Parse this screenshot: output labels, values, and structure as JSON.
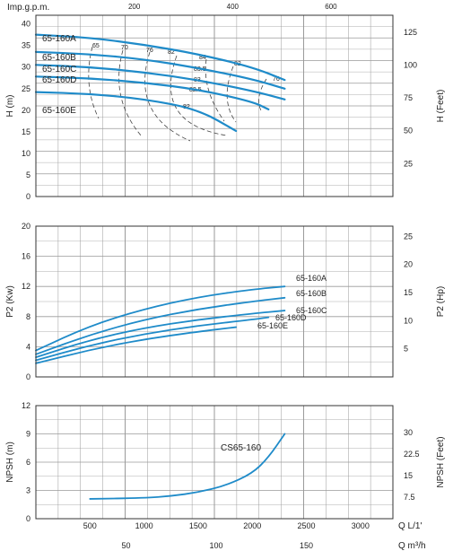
{
  "colors": {
    "curve": "#1f8bc9",
    "grid": "#9a9a9a",
    "frame": "#333333",
    "efficiency": "#444444"
  },
  "top_axis": {
    "title": "Imp.g.p.m.",
    "ticks": [
      "200",
      "400",
      "600"
    ]
  },
  "bottom_axes": {
    "q_lmin": {
      "title": "Q  L/1'",
      "ticks": [
        "500",
        "1000",
        "1500",
        "2000",
        "2500",
        "3000"
      ]
    },
    "q_m3h": {
      "title": "Q  m³/h",
      "ticks": [
        "50",
        "100",
        "150"
      ]
    }
  },
  "chart_data": [
    {
      "type": "line",
      "x_unit": "L/min",
      "xlim": [
        0,
        3300
      ],
      "ylabel": "H (m)",
      "ylabel_right": "H (Feet)",
      "ylim": [
        0,
        42
      ],
      "yticks": [
        "0",
        "5",
        "10",
        "15",
        "20",
        "25",
        "30",
        "35",
        "40"
      ],
      "yticks_right": [
        "25",
        "50",
        "75",
        "100",
        "125"
      ],
      "grid": true,
      "series": [
        {
          "name": "65-160A",
          "x": [
            0,
            500,
            1000,
            1500,
            2000,
            2300
          ],
          "y": [
            37.5,
            36.8,
            35.2,
            33.0,
            30.0,
            27.0
          ]
        },
        {
          "name": "65-160B",
          "x": [
            0,
            500,
            1000,
            1500,
            2000,
            2300
          ],
          "y": [
            33.5,
            33.0,
            31.8,
            29.8,
            27.2,
            25.0
          ]
        },
        {
          "name": "65-160C",
          "x": [
            0,
            500,
            1000,
            1500,
            2000,
            2300
          ],
          "y": [
            30.5,
            30.0,
            28.8,
            27.0,
            24.5,
            22.5
          ]
        },
        {
          "name": "65-160D",
          "x": [
            0,
            500,
            1000,
            1500,
            2000,
            2150
          ],
          "y": [
            27.8,
            27.4,
            26.4,
            24.8,
            22.0,
            20.2
          ]
        },
        {
          "name": "65-160E",
          "x": [
            0,
            500,
            1000,
            1500,
            1850
          ],
          "y": [
            24.2,
            23.8,
            22.6,
            20.2,
            15.2
          ]
        }
      ],
      "efficiency_labels": [
        "65",
        "70",
        "76",
        "82",
        "84",
        "83.5",
        "83",
        "82.5",
        "82",
        "82",
        "76"
      ]
    },
    {
      "type": "line",
      "x_unit": "L/min",
      "xlim": [
        0,
        3300
      ],
      "ylabel": "P2 (Kw)",
      "ylabel_right": "P2 (Hp)",
      "ylim": [
        0,
        20
      ],
      "yticks": [
        "0",
        "4",
        "8",
        "12",
        "16",
        "20"
      ],
      "yticks_right": [
        "5",
        "10",
        "15",
        "20",
        "25"
      ],
      "grid": true,
      "series": [
        {
          "name": "65-160A",
          "x": [
            0,
            500,
            1000,
            1500,
            2000,
            2300
          ],
          "y": [
            3.5,
            6.8,
            9.0,
            10.6,
            11.6,
            12.0
          ]
        },
        {
          "name": "65-160B",
          "x": [
            0,
            500,
            1000,
            1500,
            2000,
            2300
          ],
          "y": [
            3.0,
            5.6,
            7.6,
            9.0,
            10.0,
            10.5
          ]
        },
        {
          "name": "65-160C",
          "x": [
            0,
            500,
            1000,
            1500,
            2000,
            2300
          ],
          "y": [
            2.6,
            4.9,
            6.5,
            7.6,
            8.4,
            8.8
          ]
        },
        {
          "name": "65-160D",
          "x": [
            0,
            500,
            1000,
            1500,
            2000,
            2150
          ],
          "y": [
            2.2,
            4.2,
            5.7,
            6.8,
            7.6,
            7.9
          ]
        },
        {
          "name": "65-160E",
          "x": [
            0,
            500,
            1000,
            1500,
            1850
          ],
          "y": [
            1.8,
            3.6,
            5.0,
            6.0,
            6.6
          ]
        }
      ]
    },
    {
      "type": "line",
      "x_unit": "L/min",
      "xlim": [
        0,
        3300
      ],
      "ylabel": "NPSH (m)",
      "ylabel_right": "NPSH (Feet)",
      "ylim": [
        0,
        12
      ],
      "yticks": [
        "0",
        "3",
        "6",
        "9",
        "12"
      ],
      "yticks_right": [
        "7.5",
        "15",
        "22.5",
        "30"
      ],
      "grid": true,
      "series": [
        {
          "name": "CS65-160",
          "x": [
            500,
            1000,
            1250,
            1500,
            1750,
            2000,
            2150,
            2300
          ],
          "y": [
            2.1,
            2.2,
            2.4,
            2.8,
            3.5,
            4.8,
            6.5,
            9.0
          ]
        }
      ]
    }
  ]
}
